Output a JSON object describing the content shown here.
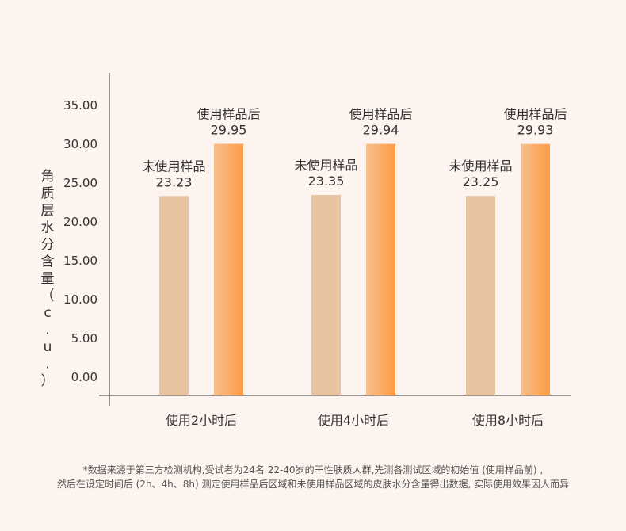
{
  "chart_data": {
    "type": "bar",
    "ylabel": "角质层水分含量（c.u.）",
    "ylim": [
      -2.5,
      38
    ],
    "yticks": [
      "35.00",
      "30.00",
      "25.00",
      "20.00",
      "15.00",
      "10.00",
      "5.00",
      "0.00"
    ],
    "ytick_values": [
      35,
      30,
      25,
      20,
      15,
      10,
      5,
      0
    ],
    "categories": [
      "使用2小时后",
      "使用4小时后",
      "使用8小时后"
    ],
    "series": [
      {
        "name": "未使用样品",
        "values": [
          23.23,
          23.35,
          23.25
        ],
        "labels": [
          "23.23",
          "23.35",
          "23.25"
        ],
        "color": "#e8c39f"
      },
      {
        "name": "使用样品后",
        "values": [
          29.95,
          29.94,
          29.93
        ],
        "labels": [
          "29.95",
          "29.94",
          "29.93"
        ],
        "color": "#ff9c48"
      }
    ],
    "grid": false
  },
  "footnote": {
    "line1": "*数据来源于第三方检测机构,受试者为24名 22-40岁的干性肤质人群,先测各测试区域的初始值 (使用样品前) ,",
    "line2": "然后在设定时间后 (2h、4h、8h) 测定使用样品后区域和未使用样品区域的皮肤水分含量得出数据, 实际使用效果因人而异"
  }
}
